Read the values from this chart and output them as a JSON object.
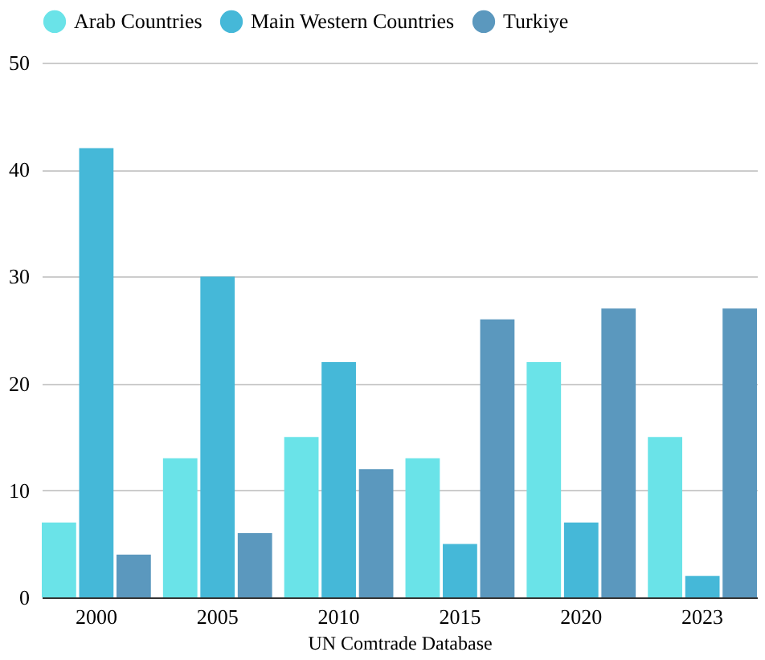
{
  "chart_data": {
    "type": "bar",
    "xlabel": "UN Comtrade Database",
    "categories": [
      "2000",
      "2005",
      "2010",
      "2015",
      "2020",
      "2023"
    ],
    "series": [
      {
        "name": "Arab Countries",
        "color": "#6ae3e8",
        "values": [
          7,
          13,
          15,
          13,
          22,
          15
        ]
      },
      {
        "name": "Main Western Countries",
        "color": "#45b8d8",
        "values": [
          42,
          30,
          22,
          5,
          7,
          2
        ]
      },
      {
        "name": "Turkiye",
        "color": "#5b98be",
        "values": [
          4,
          6,
          12,
          26,
          27,
          27
        ]
      }
    ],
    "ylim": [
      0,
      50
    ],
    "yticks": [
      0,
      10,
      20,
      30,
      40,
      50
    ],
    "grid": "y",
    "legend": "top"
  }
}
